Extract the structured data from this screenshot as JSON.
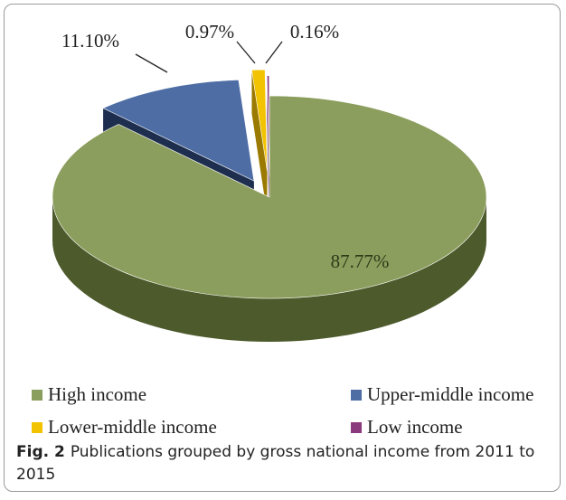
{
  "chart_data": {
    "type": "pie",
    "categories": [
      "High income",
      "Upper-middle income",
      "Lower-middle income",
      "Low income"
    ],
    "values": [
      87.77,
      11.1,
      0.97,
      0.16
    ],
    "data_labels": [
      "87.77%",
      "11.10%",
      "0.97%",
      "0.16%"
    ],
    "colors": [
      "#8c9e5e",
      "#4e6da4",
      "#f2c300",
      "#8b3a7e"
    ],
    "side_colors": [
      "#4c5a2c",
      "#1e2e4e",
      "#9a7a00",
      "#5a1f50"
    ],
    "legend_position": "bottom",
    "exploded": true,
    "three_d": true
  },
  "legend": {
    "items": [
      {
        "label": "High income",
        "color": "#8c9e5e"
      },
      {
        "label": "Upper-middle income",
        "color": "#4e6da4"
      },
      {
        "label": "Lower-middle income",
        "color": "#f2c300"
      },
      {
        "label": "Low income",
        "color": "#8b3a7e"
      }
    ]
  },
  "caption": {
    "label": "Fig. 2",
    "text": "Publications grouped by gross national income from 2011 to 2015"
  }
}
